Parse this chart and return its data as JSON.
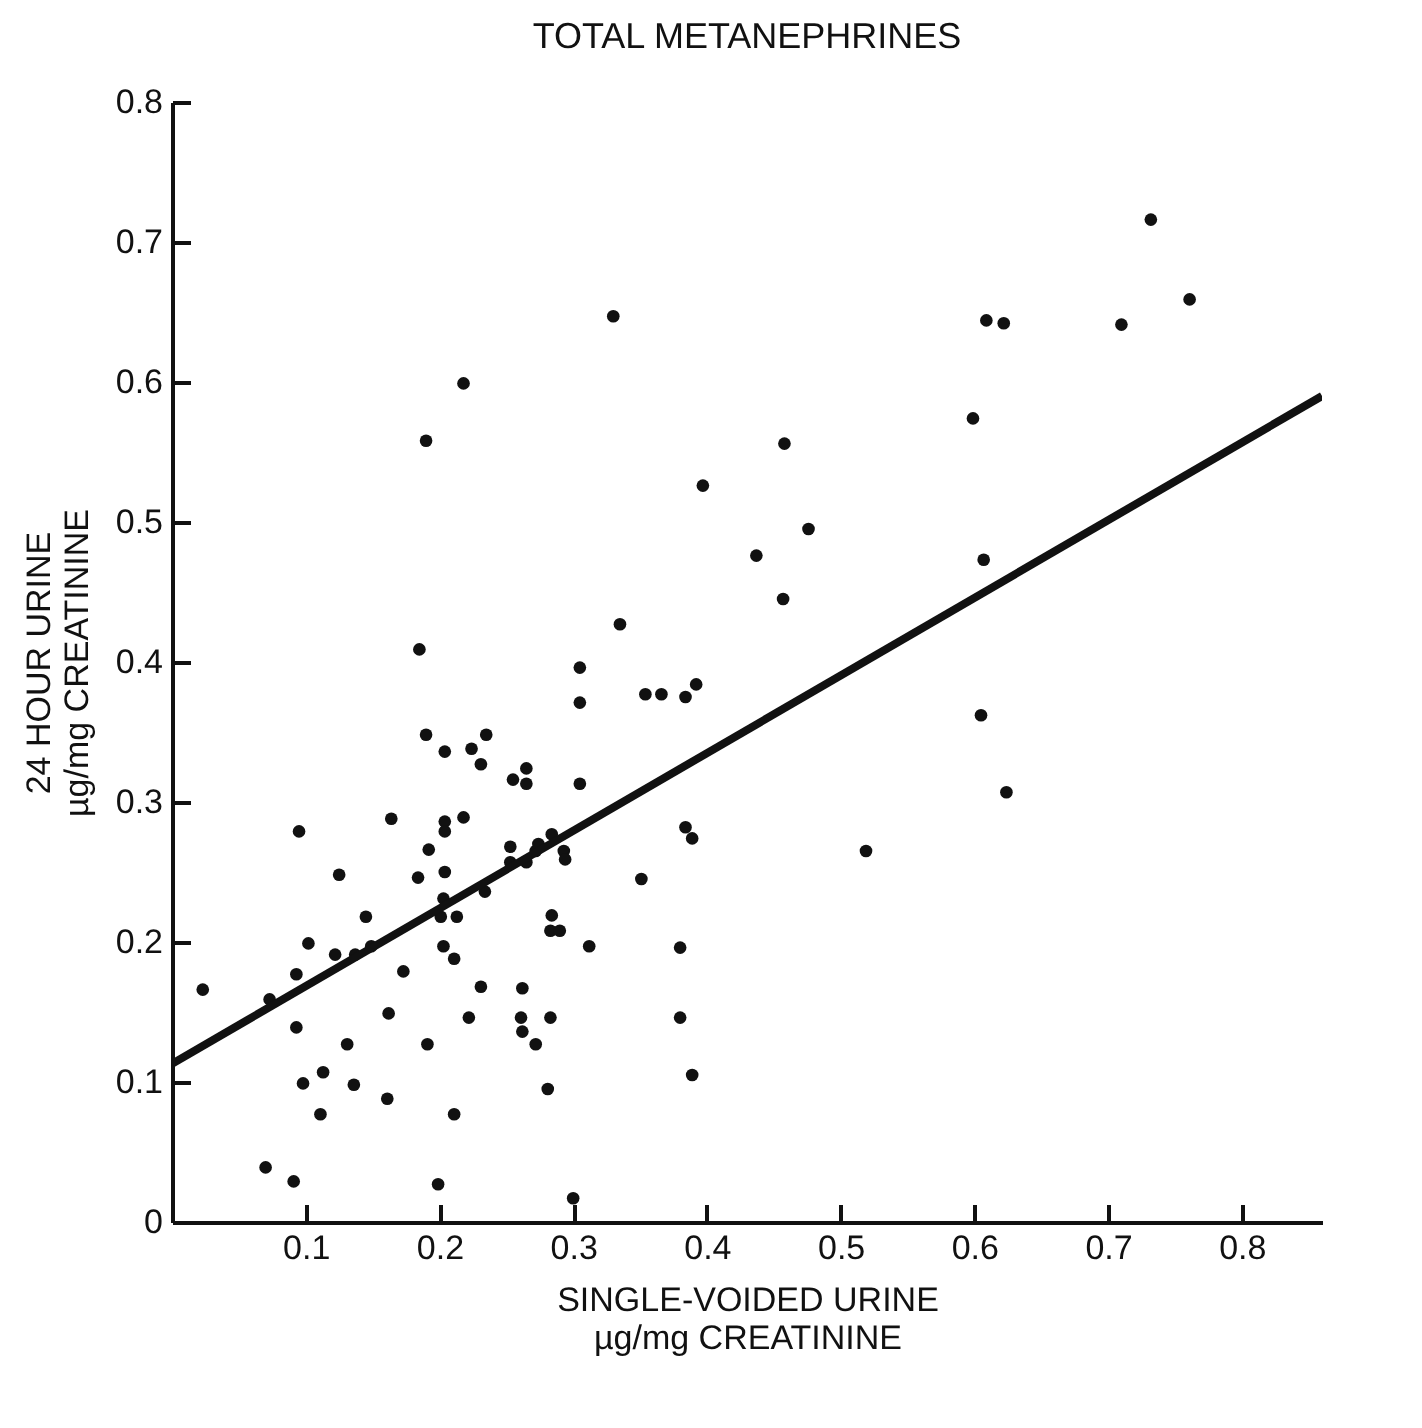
{
  "chart_data": {
    "type": "scatter",
    "title": "TOTAL METANEPHRINES",
    "xlabel": "SINGLE-VOIDED URINE\nµg/mg CREATININE",
    "ylabel": "24 HOUR URINE\nµg/mg CREATININE",
    "xlim": [
      0,
      0.86
    ],
    "ylim": [
      0,
      0.8
    ],
    "xticks": [
      0.1,
      0.2,
      0.3,
      0.4,
      0.5,
      0.6,
      0.7,
      0.8
    ],
    "yticks": [
      0,
      0.1,
      0.2,
      0.3,
      0.4,
      0.5,
      0.6,
      0.7,
      0.8
    ],
    "grid": false,
    "series": [
      {
        "marker": "circle",
        "color": "#111111",
        "x": [
          0.023,
          0.073,
          0.07,
          0.091,
          0.095,
          0.093,
          0.093,
          0.102,
          0.098,
          0.113,
          0.111,
          0.125,
          0.122,
          0.131,
          0.136,
          0.137,
          0.145,
          0.149,
          0.164,
          0.162,
          0.161,
          0.173,
          0.185,
          0.184,
          0.19,
          0.192,
          0.191,
          0.199,
          0.204,
          0.204,
          0.204,
          0.204,
          0.203,
          0.201,
          0.203,
          0.211,
          0.213,
          0.211,
          0.218,
          0.224,
          0.231,
          0.235,
          0.234,
          0.231,
          0.222,
          0.255,
          0.265,
          0.265,
          0.253,
          0.253,
          0.265,
          0.272,
          0.274,
          0.284,
          0.293,
          0.294,
          0.305,
          0.305,
          0.305,
          0.284,
          0.283,
          0.29,
          0.262,
          0.261,
          0.262,
          0.283,
          0.272,
          0.281,
          0.312,
          0.3,
          0.335,
          0.354,
          0.366,
          0.384,
          0.392,
          0.351,
          0.384,
          0.389,
          0.38,
          0.38,
          0.389,
          0.519,
          0.457,
          0.33,
          0.732,
          0.761,
          0.609,
          0.622,
          0.71,
          0.599,
          0.458,
          0.397,
          0.476,
          0.437,
          0.607,
          0.19,
          0.218,
          0.605,
          0.624
        ],
        "values": [
          0.166,
          0.159,
          0.039,
          0.029,
          0.279,
          0.177,
          0.139,
          0.199,
          0.099,
          0.107,
          0.077,
          0.248,
          0.191,
          0.127,
          0.098,
          0.191,
          0.218,
          0.197,
          0.288,
          0.149,
          0.088,
          0.179,
          0.409,
          0.246,
          0.348,
          0.266,
          0.127,
          0.027,
          0.336,
          0.286,
          0.279,
          0.25,
          0.231,
          0.218,
          0.197,
          0.188,
          0.218,
          0.077,
          0.289,
          0.338,
          0.327,
          0.348,
          0.236,
          0.168,
          0.146,
          0.316,
          0.324,
          0.313,
          0.268,
          0.257,
          0.257,
          0.265,
          0.27,
          0.277,
          0.265,
          0.259,
          0.396,
          0.371,
          0.313,
          0.219,
          0.208,
          0.208,
          0.167,
          0.146,
          0.136,
          0.146,
          0.127,
          0.095,
          0.197,
          0.017,
          0.427,
          0.377,
          0.377,
          0.375,
          0.384,
          0.245,
          0.282,
          0.274,
          0.196,
          0.146,
          0.105,
          0.265,
          0.445,
          0.647,
          0.716,
          0.659,
          0.644,
          0.642,
          0.641,
          0.574,
          0.556,
          0.526,
          0.495,
          0.476,
          0.473,
          0.558,
          0.599,
          0.362,
          0.307
        ]
      },
      {
        "type": "line",
        "color": "#111111",
        "x": [
          0,
          0.86
        ],
        "values": [
          0.113,
          0.59
        ]
      }
    ]
  }
}
